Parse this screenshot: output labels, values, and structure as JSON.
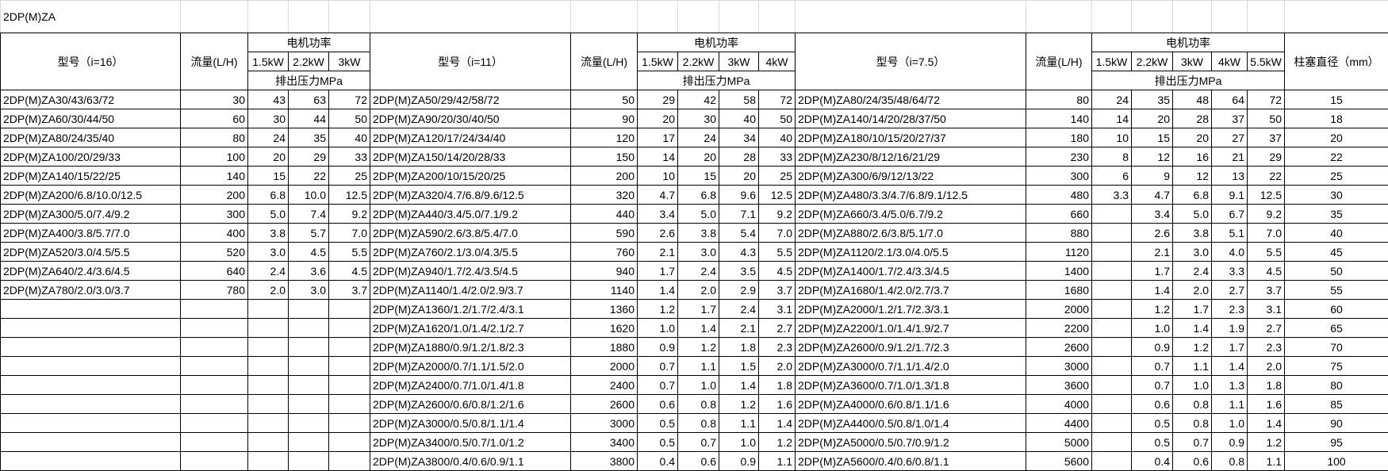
{
  "title": "2DP(M)ZA",
  "diameter_header": "柱塞直径（mm）",
  "groups": [
    {
      "model": "型号（i=16）",
      "flow": "流量(L/H)",
      "power": "电机功率",
      "kw": [
        "1.5kW",
        "2.2kW",
        "3kW"
      ],
      "pressure": "排出压力MPa",
      "rows": [
        [
          "2DP(M)ZA30/43/63/72",
          "30",
          "43",
          "63",
          "72"
        ],
        [
          "2DP(M)ZA60/30/44/50",
          "60",
          "30",
          "44",
          "50"
        ],
        [
          "2DP(M)ZA80/24/35/40",
          "80",
          "24",
          "35",
          "40"
        ],
        [
          "2DP(M)ZA100/20/29/33",
          "100",
          "20",
          "29",
          "33"
        ],
        [
          "2DP(M)ZA140/15/22/25",
          "140",
          "15",
          "22",
          "25"
        ],
        [
          "2DP(M)ZA200/6.8/10.0/12.5",
          "200",
          "6.8",
          "10.0",
          "12.5"
        ],
        [
          "2DP(M)ZA300/5.0/7.4/9.2",
          "300",
          "5.0",
          "7.4",
          "9.2"
        ],
        [
          "2DP(M)ZA400/3.8/5.7/7.0",
          "400",
          "3.8",
          "5.7",
          "7.0"
        ],
        [
          "2DP(M)ZA520/3.0/4.5/5.5",
          "520",
          "3.0",
          "4.5",
          "5.5"
        ],
        [
          "2DP(M)ZA640/2.4/3.6/4.5",
          "640",
          "2.4",
          "3.6",
          "4.5"
        ],
        [
          "2DP(M)ZA780/2.0/3.0/3.7",
          "780",
          "2.0",
          "3.0",
          "3.7"
        ]
      ]
    },
    {
      "model": "型号（i=11）",
      "flow": "流量(L/H)",
      "power": "电机功率",
      "kw": [
        "1.5kW",
        "2.2kW",
        "3kW",
        "4kW"
      ],
      "pressure": "排出压力MPa",
      "rows": [
        [
          "2DP(M)ZA50/29/42/58/72",
          "50",
          "29",
          "42",
          "58",
          "72"
        ],
        [
          "2DP(M)ZA90/20/30/40/50",
          "90",
          "20",
          "30",
          "40",
          "50"
        ],
        [
          "2DP(M)ZA120/17/24/34/40",
          "120",
          "17",
          "24",
          "34",
          "40"
        ],
        [
          "2DP(M)ZA150/14/20/28/33",
          "150",
          "14",
          "20",
          "28",
          "33"
        ],
        [
          "2DP(M)ZA200/10/15/20/25",
          "200",
          "10",
          "15",
          "20",
          "25"
        ],
        [
          "2DP(M)ZA320/4.7/6.8/9.6/12.5",
          "320",
          "4.7",
          "6.8",
          "9.6",
          "12.5"
        ],
        [
          "2DP(M)ZA440/3.4/5.0/7.1/9.2",
          "440",
          "3.4",
          "5.0",
          "7.1",
          "9.2"
        ],
        [
          "2DP(M)ZA590/2.6/3.8/5.4/7.0",
          "590",
          "2.6",
          "3.8",
          "5.4",
          "7.0"
        ],
        [
          "2DP(M)ZA760/2.1/3.0/4.3/5.5",
          "760",
          "2.1",
          "3.0",
          "4.3",
          "5.5"
        ],
        [
          "2DP(M)ZA940/1.7/2.4/3.5/4.5",
          "940",
          "1.7",
          "2.4",
          "3.5",
          "4.5"
        ],
        [
          "2DP(M)ZA1140/1.4/2.0/2.9/3.7",
          "1140",
          "1.4",
          "2.0",
          "2.9",
          "3.7"
        ],
        [
          "2DP(M)ZA1360/1.2/1.7/2.4/3.1",
          "1360",
          "1.2",
          "1.7",
          "2.4",
          "3.1"
        ],
        [
          "2DP(M)ZA1620/1.0/1.4/2.1/2.7",
          "1620",
          "1.0",
          "1.4",
          "2.1",
          "2.7"
        ],
        [
          "2DP(M)ZA1880/0.9/1.2/1.8/2.3",
          "1880",
          "0.9",
          "1.2",
          "1.8",
          "2.3"
        ],
        [
          "2DP(M)ZA2000/0.7/1.1/1.5/2.0",
          "2000",
          "0.7",
          "1.1",
          "1.5",
          "2.0"
        ],
        [
          "2DP(M)ZA2400/0.7/1.0/1.4/1.8",
          "2400",
          "0.7",
          "1.0",
          "1.4",
          "1.8"
        ],
        [
          "2DP(M)ZA2600/0.6/0.8/1.2/1.6",
          "2600",
          "0.6",
          "0.8",
          "1.2",
          "1.6"
        ],
        [
          "2DP(M)ZA3000/0.5/0.8/1.1/1.4",
          "3000",
          "0.5",
          "0.8",
          "1.1",
          "1.4"
        ],
        [
          "2DP(M)ZA3400/0.5/0.7/1.0/1.2",
          "3400",
          "0.5",
          "0.7",
          "1.0",
          "1.2"
        ],
        [
          "2DP(M)ZA3800/0.4/0.6/0.9/1.1",
          "3800",
          "0.4",
          "0.6",
          "0.9",
          "1.1"
        ]
      ]
    },
    {
      "model": "型号（i=7.5）",
      "flow": "流量(L/H)",
      "power": "电机功率",
      "kw": [
        "1.5kW",
        "2.2kW",
        "3kW",
        "4kW",
        "5.5kW"
      ],
      "pressure": "排出压力MPa",
      "rows": [
        [
          "2DP(M)ZA80/24/35/48/64/72",
          "80",
          "24",
          "35",
          "48",
          "64",
          "72",
          "15"
        ],
        [
          "2DP(M)ZA140/14/20/28/37/50",
          "140",
          "14",
          "20",
          "28",
          "37",
          "50",
          "18"
        ],
        [
          "2DP(M)ZA180/10/15/20/27/37",
          "180",
          "10",
          "15",
          "20",
          "27",
          "37",
          "20"
        ],
        [
          "2DP(M)ZA230/8/12/16/21/29",
          "230",
          "8",
          "12",
          "16",
          "21",
          "29",
          "22"
        ],
        [
          "2DP(M)ZA300/6/9/12/13/22",
          "300",
          "6",
          "9",
          "12",
          "13",
          "22",
          "25"
        ],
        [
          "2DP(M)ZA480/3.3/4.7/6.8/9.1/12.5",
          "480",
          "3.3",
          "4.7",
          "6.8",
          "9.1",
          "12.5",
          "30"
        ],
        [
          "2DP(M)ZA660/3.4/5.0/6.7/9.2",
          "660",
          null,
          "3.4",
          "5.0",
          "6.7",
          "9.2",
          "35"
        ],
        [
          "2DP(M)ZA880/2.6/3.8/5.1/7.0",
          "880",
          null,
          "2.6",
          "3.8",
          "5.1",
          "7.0",
          "40"
        ],
        [
          "2DP(M)ZA1120/2.1/3.0/4.0/5.5",
          "1120",
          null,
          "2.1",
          "3.0",
          "4.0",
          "5.5",
          "45"
        ],
        [
          "2DP(M)ZA1400/1.7/2.4/3.3/4.5",
          "1400",
          null,
          "1.7",
          "2.4",
          "3.3",
          "4.5",
          "50"
        ],
        [
          "2DP(M)ZA1680/1.4/2.0/2.7/3.7",
          "1680",
          null,
          "1.4",
          "2.0",
          "2.7",
          "3.7",
          "55"
        ],
        [
          "2DP(M)ZA2000/1.2/1.7/2.3/3.1",
          "2000",
          null,
          "1.2",
          "1.7",
          "2.3",
          "3.1",
          "60"
        ],
        [
          "2DP(M)ZA2200/1.0/1.4/1.9/2.7",
          "2200",
          null,
          "1.0",
          "1.4",
          "1.9",
          "2.7",
          "65"
        ],
        [
          "2DP(M)ZA2600/0.9/1.2/1.7/2.3",
          "2600",
          null,
          "0.9",
          "1.2",
          "1.7",
          "2.3",
          "70"
        ],
        [
          "2DP(M)ZA3000/0.7/1.1/1.4/2.0",
          "3000",
          null,
          "0.7",
          "1.1",
          "1.4",
          "2.0",
          "75"
        ],
        [
          "2DP(M)ZA3600/0.7/1.0/1.3/1.8",
          "3600",
          null,
          "0.7",
          "1.0",
          "1.3",
          "1.8",
          "80"
        ],
        [
          "2DP(M)ZA4000/0.6/0.8/1.1/1.6",
          "4000",
          null,
          "0.6",
          "0.8",
          "1.1",
          "1.6",
          "85"
        ],
        [
          "2DP(M)ZA4400/0.5/0.8/1.0/1.4",
          "4400",
          null,
          "0.5",
          "0.8",
          "1.0",
          "1.4",
          "90"
        ],
        [
          "2DP(M)ZA5000/0.5/0.7/0.9/1.2",
          "5000",
          null,
          "0.5",
          "0.7",
          "0.9",
          "1.2",
          "95"
        ],
        [
          "2DP(M)ZA5600/0.4/0.6/0.8/1.1",
          "5600",
          null,
          "0.4",
          "0.6",
          "0.8",
          "1.1",
          "100"
        ]
      ]
    }
  ]
}
